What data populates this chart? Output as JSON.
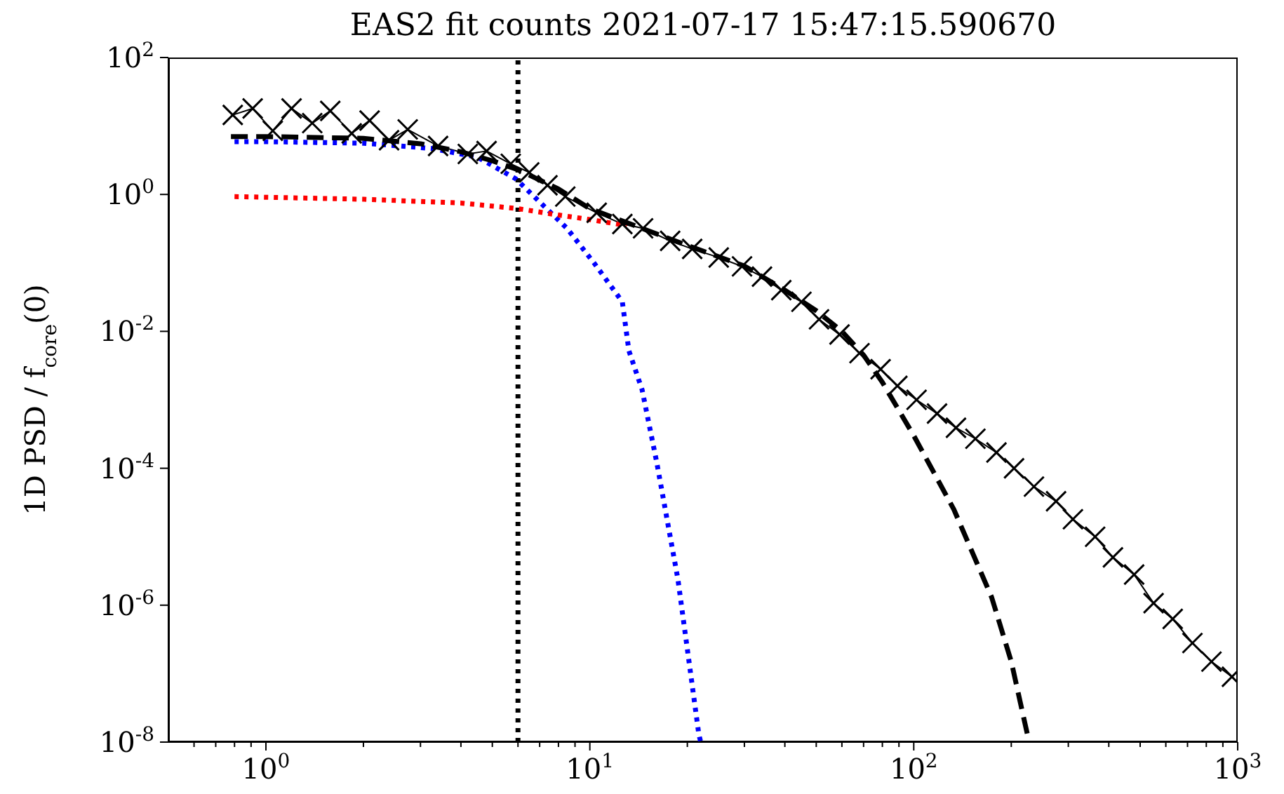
{
  "chart_data": {
    "type": "line",
    "title": "EAS2 fit counts 2021-07-17 15:47:15.590670",
    "ylabel": "1D PSD / f$_{core}$(0)",
    "log": "xy",
    "xlim": [
      0.5,
      1000
    ],
    "ylim": [
      1e-08,
      100
    ],
    "xticks": [
      {
        "value": 0.6,
        "label": null
      },
      {
        "value": 0.7,
        "label": null
      },
      {
        "value": 0.8,
        "label": null
      },
      {
        "value": 0.9,
        "label": null
      },
      {
        "value": 1,
        "label": "10$^{0}$"
      },
      {
        "value": 2,
        "label": null
      },
      {
        "value": 3,
        "label": null
      },
      {
        "value": 4,
        "label": null
      },
      {
        "value": 5,
        "label": null
      },
      {
        "value": 6,
        "label": null
      },
      {
        "value": 7,
        "label": null
      },
      {
        "value": 8,
        "label": null
      },
      {
        "value": 9,
        "label": null
      },
      {
        "value": 10,
        "label": "10$^{1}$"
      },
      {
        "value": 20,
        "label": null
      },
      {
        "value": 30,
        "label": null
      },
      {
        "value": 40,
        "label": null
      },
      {
        "value": 50,
        "label": null
      },
      {
        "value": 60,
        "label": null
      },
      {
        "value": 70,
        "label": null
      },
      {
        "value": 80,
        "label": null
      },
      {
        "value": 90,
        "label": null
      },
      {
        "value": 100,
        "label": "10$^{2}$"
      },
      {
        "value": 200,
        "label": null
      },
      {
        "value": 300,
        "label": null
      },
      {
        "value": 400,
        "label": null
      },
      {
        "value": 500,
        "label": null
      },
      {
        "value": 600,
        "label": null
      },
      {
        "value": 700,
        "label": null
      },
      {
        "value": 800,
        "label": null
      },
      {
        "value": 900,
        "label": null
      },
      {
        "value": 1000,
        "label": "10$^{3}$"
      }
    ],
    "yticks": [
      {
        "value": 1e-08,
        "label": "10$^{-8}$"
      },
      {
        "value": 1e-06,
        "label": "10$^{-6}$"
      },
      {
        "value": 0.0001,
        "label": "10$^{-4}$"
      },
      {
        "value": 0.01,
        "label": "10$^{-2}$"
      },
      {
        "value": 1,
        "label": "10$^{0}$"
      },
      {
        "value": 100,
        "label": "10$^{2}$"
      }
    ],
    "ref_lines": [
      {
        "axis": "x",
        "value": 6,
        "color": "#000000",
        "line_style": "dotted"
      }
    ],
    "series": [
      {
        "color": "#000000",
        "marker": "cross",
        "line_style": "solid",
        "x": [
          0.79,
          0.91,
          1.05,
          1.2,
          1.39,
          1.58,
          1.84,
          2.09,
          2.4,
          2.74,
          3.4,
          4.2,
          4.8,
          5.7,
          6.5,
          7.4,
          8.4,
          10.5,
          12.6,
          14.6,
          17.7,
          20.7,
          25,
          29.5,
          34,
          39,
          45,
          51,
          59,
          68,
          79,
          89,
          102,
          118,
          135,
          155,
          180,
          204,
          235,
          275,
          310,
          363,
          412,
          479,
          550,
          630,
          725,
          830,
          960
        ],
        "values": [
          14.5,
          18,
          8.5,
          18,
          11,
          16.6,
          7.8,
          12,
          6.2,
          8.9,
          5.1,
          3.9,
          4.3,
          2.8,
          2.1,
          1.36,
          0.93,
          0.54,
          0.37,
          0.32,
          0.21,
          0.16,
          0.12,
          0.089,
          0.063,
          0.04,
          0.027,
          0.015,
          0.009,
          0.0048,
          0.0028,
          0.0016,
          0.001,
          0.00063,
          0.00039,
          0.00027,
          0.00017,
          0.0001,
          5.4e-05,
          3.3e-05,
          1.8e-05,
          1e-05,
          5e-06,
          2.8e-06,
          1.07e-06,
          6.3e-07,
          2.8e-07,
          1.5e-07,
          9e-08
        ]
      },
      {
        "color": "#0000ff",
        "marker": "none",
        "line_style": "dotted",
        "x": [
          0.8,
          1,
          2,
          3.25,
          4.5,
          5.9,
          8.5,
          10.3,
          12.6,
          13.2,
          14.5,
          16.1,
          18.7,
          21.7,
          22
        ],
        "values": [
          5.9,
          5.9,
          5.6,
          4.7,
          3.5,
          1.7,
          0.32,
          0.1,
          0.027,
          0.0052,
          0.0014,
          0.00012,
          2.4e-06,
          1.3e-08,
          1e-08
        ]
      },
      {
        "color": "#ff0000",
        "marker": "none",
        "line_style": "dotted",
        "x": [
          0.8,
          2,
          4,
          6,
          8,
          10,
          13
        ],
        "values": [
          0.93,
          0.85,
          0.75,
          0.62,
          0.5,
          0.43,
          0.35
        ]
      },
      {
        "color": "#000000",
        "marker": "none",
        "line_style": "dashed",
        "x": [
          0.78,
          1,
          2,
          3,
          4,
          5,
          6,
          8,
          10,
          15,
          20,
          30,
          40,
          50,
          60,
          70,
          80,
          100,
          133,
          174,
          200,
          226,
          228
        ],
        "values": [
          7,
          7,
          6.6,
          5.5,
          4.2,
          3.1,
          2.3,
          1.2,
          0.62,
          0.3,
          0.18,
          0.09,
          0.04,
          0.02,
          0.01,
          0.0045,
          0.0018,
          0.0003,
          2.5e-05,
          1.3e-06,
          1.5e-07,
          1.1e-08,
          1e-08
        ]
      }
    ]
  }
}
